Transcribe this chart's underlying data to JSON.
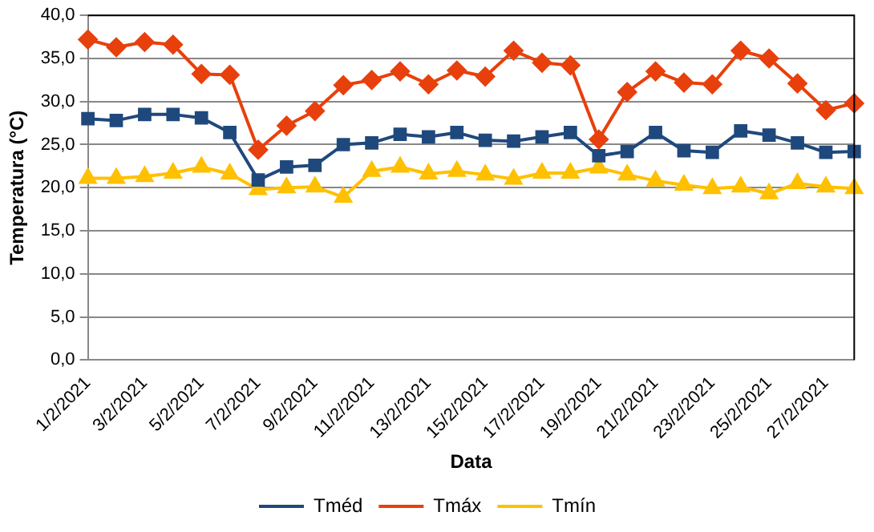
{
  "chart_data": {
    "type": "line",
    "xlabel": "Data",
    "ylabel": "Temperatura (°C)",
    "categories": [
      "1/2/2021",
      null,
      "3/2/2021",
      null,
      "5/2/2021",
      null,
      "7/2/2021",
      null,
      "9/2/2021",
      null,
      "11/2/2021",
      null,
      "13/2/2021",
      null,
      "15/2/2021",
      null,
      "17/2/2021",
      null,
      "19/2/2021",
      null,
      "21/2/2021",
      null,
      "23/2/2021",
      null,
      "25/2/2021",
      null,
      "27/2/2021",
      null
    ],
    "series": [
      {
        "name": "Tméd",
        "color": "#1f497d",
        "marker": "square",
        "values": [
          28.0,
          27.8,
          28.5,
          28.5,
          28.1,
          26.4,
          20.9,
          22.4,
          22.6,
          25.0,
          25.2,
          26.2,
          25.9,
          26.4,
          25.5,
          25.4,
          25.9,
          26.4,
          23.7,
          24.2,
          26.4,
          24.3,
          24.1,
          26.6,
          26.1,
          25.2,
          24.1,
          24.2
        ]
      },
      {
        "name": "Tmáx",
        "color": "#e8400c",
        "marker": "diamond",
        "values": [
          37.2,
          36.3,
          36.9,
          36.6,
          33.2,
          33.1,
          24.4,
          27.2,
          28.9,
          31.9,
          32.5,
          33.5,
          32.0,
          33.6,
          32.9,
          35.9,
          34.5,
          34.2,
          25.6,
          31.1,
          33.5,
          32.2,
          32.0,
          35.9,
          35.0,
          32.1,
          29.0,
          29.8
        ]
      },
      {
        "name": "Tmín",
        "color": "#ffc000",
        "marker": "triangle",
        "values": [
          21.1,
          21.1,
          21.3,
          21.7,
          22.4,
          21.6,
          19.8,
          20.0,
          20.1,
          18.9,
          21.9,
          22.4,
          21.6,
          21.9,
          21.5,
          21.0,
          21.7,
          21.7,
          22.3,
          21.5,
          20.8,
          20.3,
          19.9,
          20.1,
          19.3,
          20.5,
          20.1,
          19.9
        ]
      }
    ],
    "ylim": [
      0,
      40
    ],
    "yticks": [
      {
        "value": 0,
        "label": "0,0"
      },
      {
        "value": 5,
        "label": "5,0"
      },
      {
        "value": 10,
        "label": "10,0"
      },
      {
        "value": 15,
        "label": "15,0"
      },
      {
        "value": 20,
        "label": "20,0"
      },
      {
        "value": 25,
        "label": "25,0"
      },
      {
        "value": 30,
        "label": "30,0"
      },
      {
        "value": 35,
        "label": "35,0"
      },
      {
        "value": 40,
        "label": "40,0"
      }
    ],
    "grid": "y",
    "legend": "bottom",
    "line_style": "solid"
  }
}
